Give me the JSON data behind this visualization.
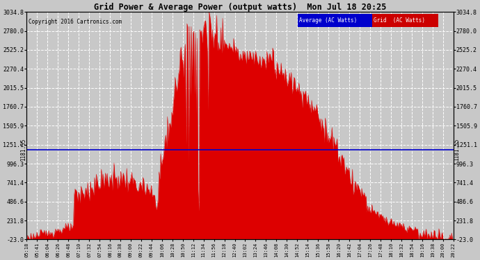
{
  "title": "Grid Power & Average Power (output watts)  Mon Jul 18 20:25",
  "copyright": "Copyright 2016 Cartronics.com",
  "background_color": "#c8c8c8",
  "plot_bg_color": "#c8c8c8",
  "yticks_left": [
    -23.0,
    231.8,
    486.6,
    741.4,
    996.3,
    1251.1,
    1505.9,
    1760.7,
    2015.5,
    2270.4,
    2525.2,
    2780.0,
    3034.8
  ],
  "ymin": -23.0,
  "ymax": 3034.8,
  "hline_value": 1181.55,
  "hline_color": "#0000cc",
  "grid_color": "#ffffff",
  "fill_color": "#dd0000",
  "line_color": "#dd0000",
  "avg_legend_bg": "#0000cc",
  "avg_legend_text": "Average (AC Watts)",
  "grid_legend_bg": "#cc0000",
  "grid_legend_text": "Grid  (AC Watts)",
  "legend_text_color": "#ffffff",
  "xtick_labels": [
    "05:18",
    "05:41",
    "06:04",
    "06:26",
    "06:48",
    "07:10",
    "07:32",
    "07:54",
    "08:16",
    "08:38",
    "09:00",
    "09:22",
    "09:44",
    "10:06",
    "10:28",
    "10:50",
    "11:12",
    "11:34",
    "11:56",
    "12:18",
    "12:40",
    "13:02",
    "13:24",
    "13:46",
    "14:08",
    "14:30",
    "14:52",
    "15:14",
    "15:36",
    "15:58",
    "16:20",
    "16:42",
    "17:04",
    "17:26",
    "17:48",
    "18:10",
    "18:32",
    "18:54",
    "19:16",
    "19:38",
    "20:00",
    "20:22"
  ],
  "num_points": 504
}
